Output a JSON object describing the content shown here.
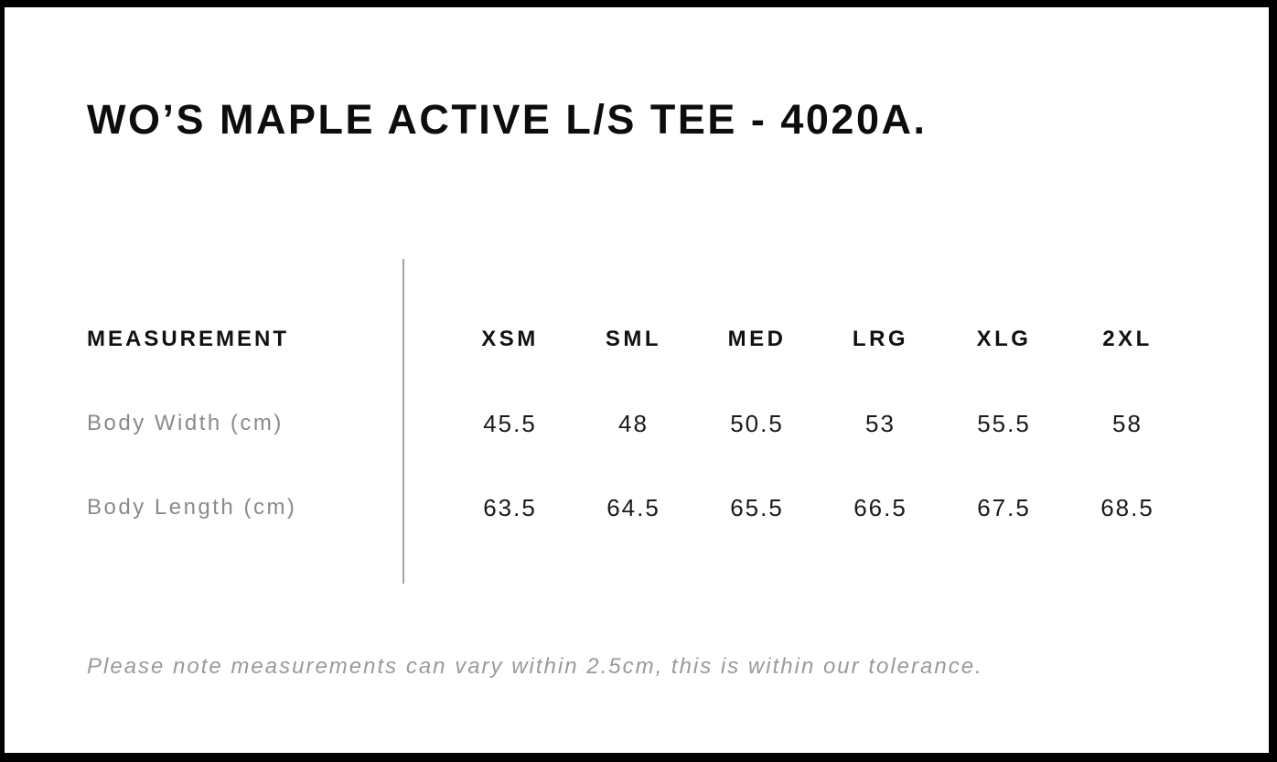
{
  "title": "WO’S MAPLE ACTIVE L/S TEE - 4020A.",
  "size_chart": {
    "measurement_header": "MEASUREMENT",
    "size_headers": [
      "XSM",
      "SML",
      "MED",
      "LRG",
      "XLG",
      "2XL"
    ],
    "rows": [
      {
        "label": "Body Width (cm)",
        "values": [
          "45.5",
          "48",
          "50.5",
          "53",
          "55.5",
          "58"
        ]
      },
      {
        "label": "Body Length (cm)",
        "values": [
          "63.5",
          "64.5",
          "65.5",
          "66.5",
          "67.5",
          "68.5"
        ]
      }
    ]
  },
  "note": "Please note measurements can vary within 2.5cm, this is within our tolerance.",
  "chart_data": {
    "type": "table",
    "title": "WO’S MAPLE ACTIVE L/S TEE - 4020A.",
    "columns": [
      "MEASUREMENT",
      "XSM",
      "SML",
      "MED",
      "LRG",
      "XLG",
      "2XL"
    ],
    "rows": [
      [
        "Body Width (cm)",
        45.5,
        48,
        50.5,
        53,
        55.5,
        58
      ],
      [
        "Body Length (cm)",
        63.5,
        64.5,
        65.5,
        66.5,
        67.5,
        68.5
      ]
    ]
  },
  "colors": {
    "frame_border": "#000000",
    "text_primary": "#0d0d0d",
    "text_secondary": "#8a8a8a",
    "note_text": "#9a9a9a",
    "divider": "#a3a3a3",
    "background": "#ffffff"
  }
}
